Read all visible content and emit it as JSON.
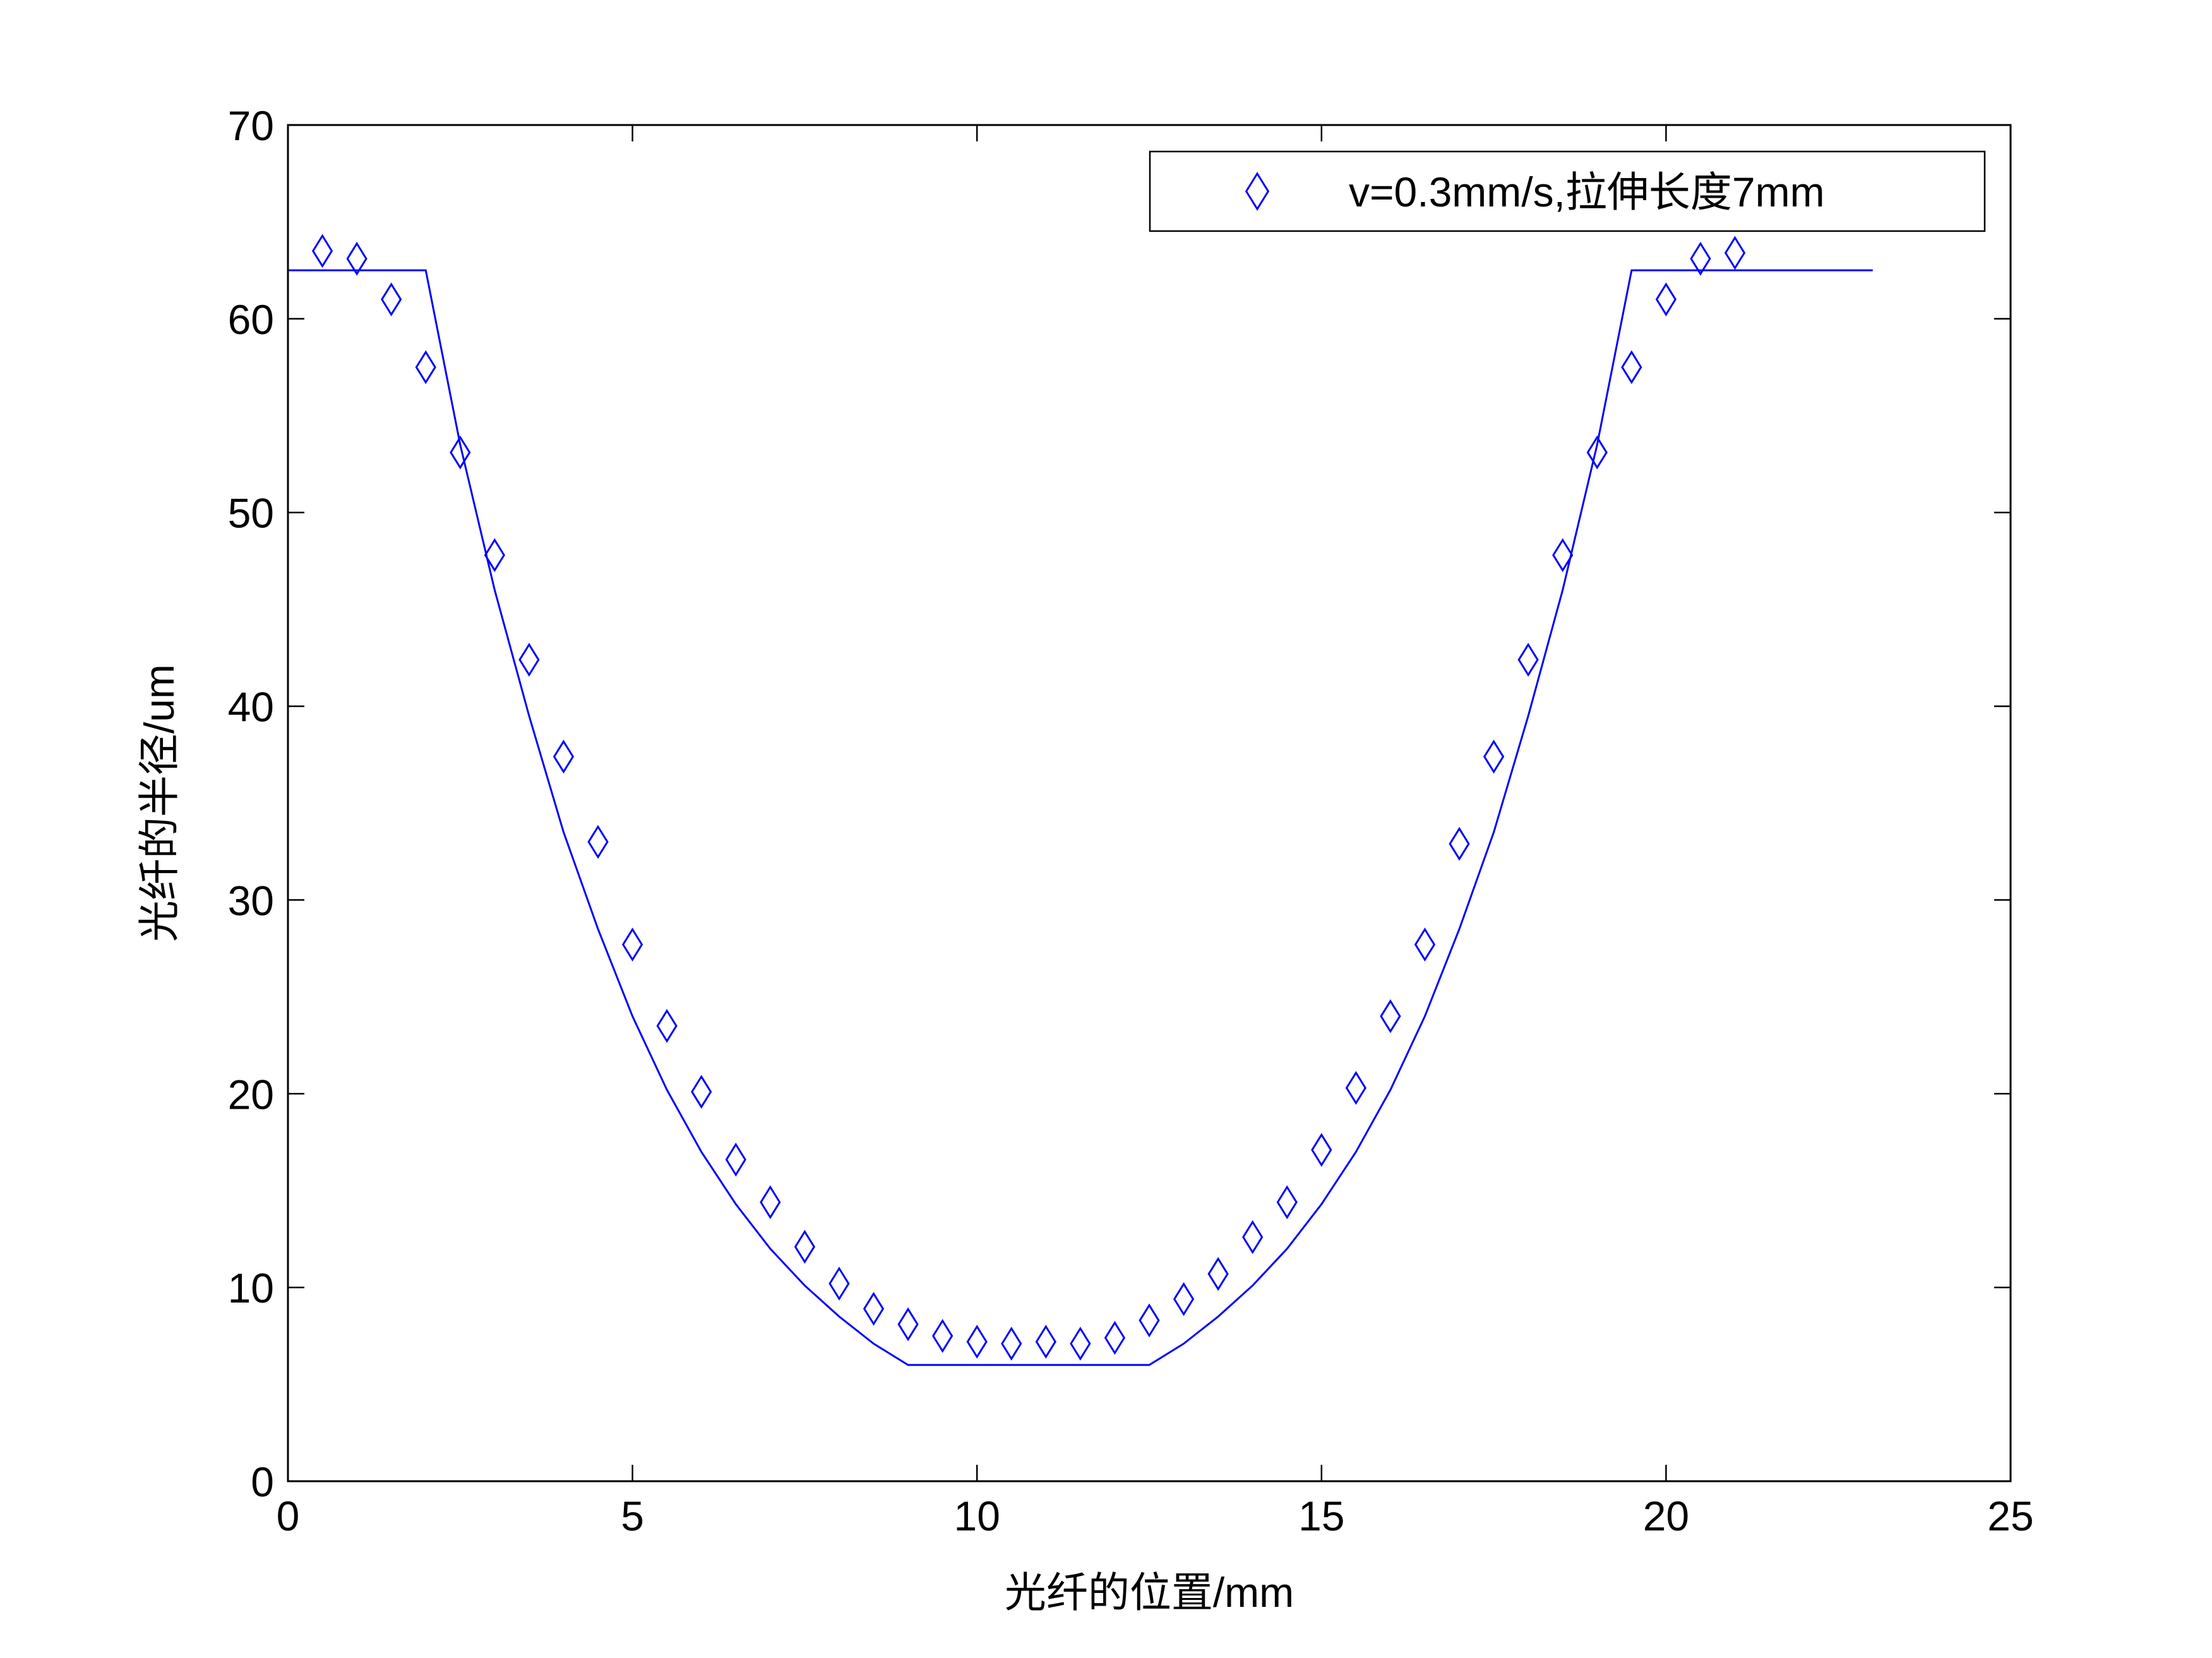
{
  "chart_data": {
    "type": "line",
    "xlabel": "光纤的位置/mm",
    "ylabel": "光纤的半径/um",
    "xlim": [
      0,
      25
    ],
    "xticks": [
      0,
      5,
      10,
      15,
      20,
      25
    ],
    "ylim": [
      0,
      70
    ],
    "yticks": [
      0,
      10,
      20,
      30,
      40,
      50,
      60,
      70
    ],
    "grid": false,
    "legend": "upper right",
    "series": [
      {
        "name": "v=0.3mm/s,拉伸长度7mm",
        "color": "#0000ff",
        "mode": "markers",
        "marker": "diamond",
        "x": [
          0.5,
          1,
          1.5,
          2,
          2.5,
          3,
          3.5,
          4,
          4.5,
          5,
          5.5,
          6,
          6.5,
          7,
          7.5,
          8,
          8.5,
          9,
          9.5,
          10,
          10.5,
          11,
          11.5,
          12,
          12.5,
          13,
          13.5,
          14,
          14.5,
          15,
          15.5,
          16,
          16.5,
          17,
          17.5,
          18,
          18.5,
          19,
          19.5,
          20,
          20.5,
          21
        ],
        "values": [
          63.5,
          63.1,
          61,
          57.5,
          53.1,
          47.8,
          42.4,
          37.4,
          33,
          27.7,
          23.5,
          20.1,
          16.6,
          14.4,
          12.1,
          10.2,
          8.9,
          8.1,
          7.5,
          7.2,
          7.1,
          7.2,
          7.1,
          7.4,
          8.3,
          9.4,
          10.7,
          12.6,
          14.4,
          17.1,
          20.3,
          24,
          27.7,
          32.9,
          37.4,
          42.4,
          47.8,
          53.1,
          57.5,
          61,
          63.1,
          63.4
        ]
      },
      {
        "color": "#0000ff",
        "mode": "lines",
        "x": [
          0,
          2,
          2.5,
          3,
          3.5,
          4,
          4.5,
          5,
          5.5,
          6,
          6.5,
          7,
          7.5,
          8,
          8.5,
          9,
          12.5,
          13,
          13.5,
          14,
          14.5,
          15,
          15.5,
          16,
          16.5,
          17,
          17.5,
          18,
          18.5,
          19,
          19.5,
          23
        ],
        "values": [
          62.5,
          62.5,
          53.5,
          46,
          39.5,
          33.5,
          28.5,
          24,
          20.2,
          17,
          14.3,
          12,
          10.1,
          8.5,
          7.1,
          6,
          6,
          7.1,
          8.5,
          10.1,
          12,
          14.3,
          17,
          20.2,
          24,
          28.5,
          33.5,
          39.5,
          46,
          53.5,
          62.5,
          62.5
        ]
      }
    ]
  }
}
